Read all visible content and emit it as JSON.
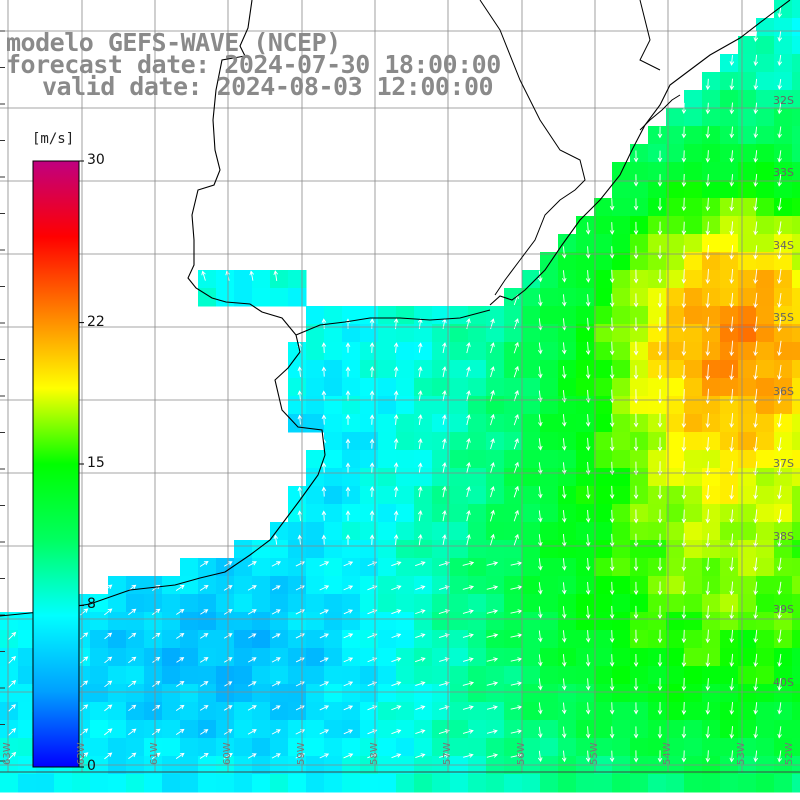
{
  "title": {
    "line1": "modelo GEFS-WAVE (NCEP)",
    "line2": "forecast date: 2024-07-30 18:00:00",
    "line3": "valid date: 2024-08-03 12:00:00"
  },
  "colorbar": {
    "unit": "[m/s]",
    "min": 0,
    "max": 30,
    "ticks": [
      "30",
      "22",
      "15",
      "8",
      "0"
    ],
    "tick_values": [
      30,
      22,
      15,
      8,
      0
    ],
    "colors": [
      "#0000ff",
      "#00a0ff",
      "#00ffff",
      "#00ff60",
      "#00ff00",
      "#ffff00",
      "#ff8000",
      "#ff0000",
      "#c00080"
    ]
  },
  "map": {
    "lat_labels": [
      "32S",
      "33S",
      "34S",
      "35S",
      "36S",
      "37S",
      "38S",
      "39S",
      "40S"
    ],
    "lon_labels": [
      "63W",
      "62W",
      "61W",
      "60W",
      "59W",
      "58W",
      "57W",
      "56W",
      "55W",
      "54W",
      "53W",
      "52W"
    ]
  }
}
